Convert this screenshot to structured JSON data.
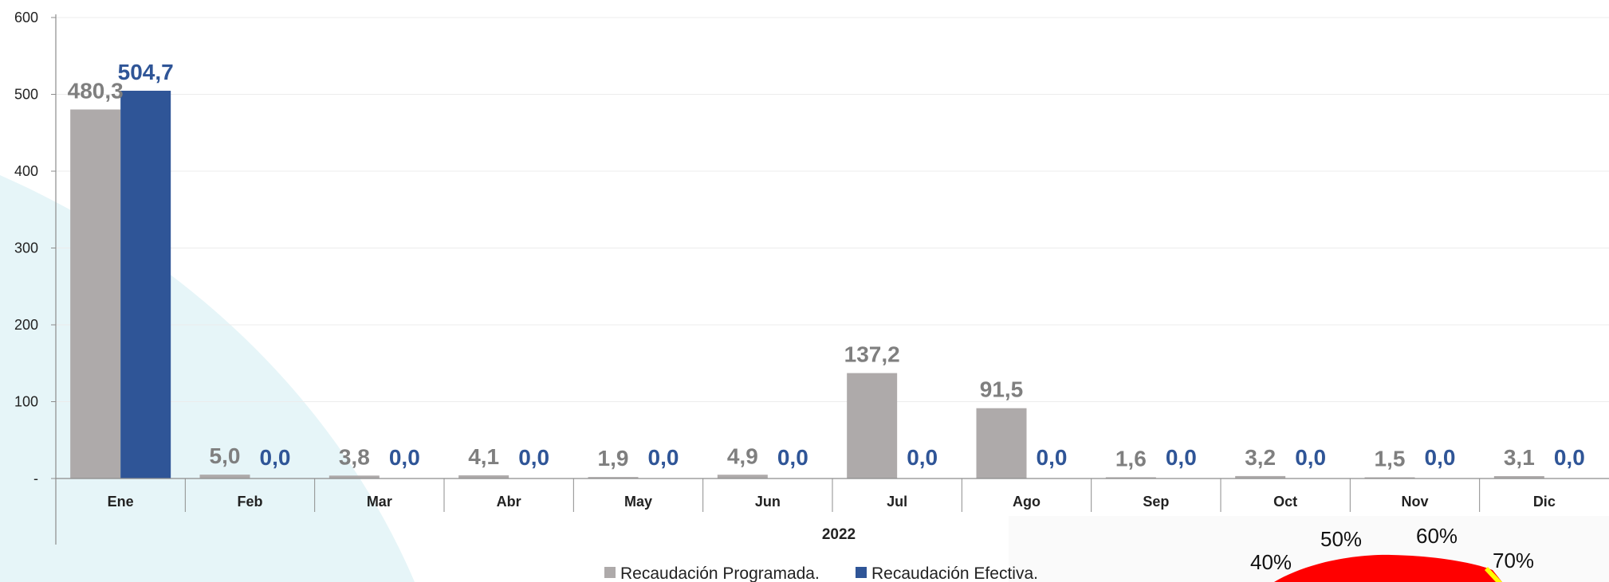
{
  "chart_data": {
    "type": "bar",
    "categories": [
      "Ene",
      "Feb",
      "Mar",
      "Abr",
      "May",
      "Jun",
      "Jul",
      "Ago",
      "Sep",
      "Oct",
      "Nov",
      "Dic"
    ],
    "group_label": "2022",
    "series": [
      {
        "name": "Recaudación Programada.",
        "color": "#aeaaaa",
        "label_color": "#7f7f7f",
        "values": [
          480.3,
          5.0,
          3.8,
          4.1,
          1.9,
          4.9,
          137.2,
          91.5,
          1.6,
          3.2,
          1.5,
          3.1
        ],
        "labels": [
          "480,3",
          "5,0",
          "3,8",
          "4,1",
          "1,9",
          "4,9",
          "137,2",
          "91,5",
          "1,6",
          "3,2",
          "1,5",
          "3,1"
        ]
      },
      {
        "name": "Recaudación Efectiva.",
        "color": "#2f5597",
        "label_color": "#2f5597",
        "values": [
          504.7,
          0.0,
          0.0,
          0.0,
          0.0,
          0.0,
          0.0,
          0.0,
          0.0,
          0.0,
          0.0,
          0.0
        ],
        "labels": [
          "504,7",
          "0,0",
          "0,0",
          "0,0",
          "0,0",
          "0,0",
          "0,0",
          "0,0",
          "0,0",
          "0,0",
          "0,0",
          "0,0"
        ]
      }
    ],
    "yticks": [
      {
        "value": 0,
        "label": "-"
      },
      {
        "value": 100,
        "label": "100"
      },
      {
        "value": 200,
        "label": "200"
      },
      {
        "value": 300,
        "label": "300"
      },
      {
        "value": 400,
        "label": "400"
      },
      {
        "value": 500,
        "label": "500"
      },
      {
        "value": 600,
        "label": "600"
      }
    ],
    "ylim": [
      0,
      600
    ],
    "grid": true,
    "legend_position": "bottom-center"
  },
  "gauge": {
    "tick_labels": [
      "40%",
      "50%",
      "60%",
      "70%"
    ],
    "colors": {
      "red": "#ff0000",
      "yellow": "#ffff00"
    }
  },
  "colors": {
    "background_arc": "#e6f5f8",
    "gridline": "#ececec",
    "axis": "#8c8c8c"
  }
}
